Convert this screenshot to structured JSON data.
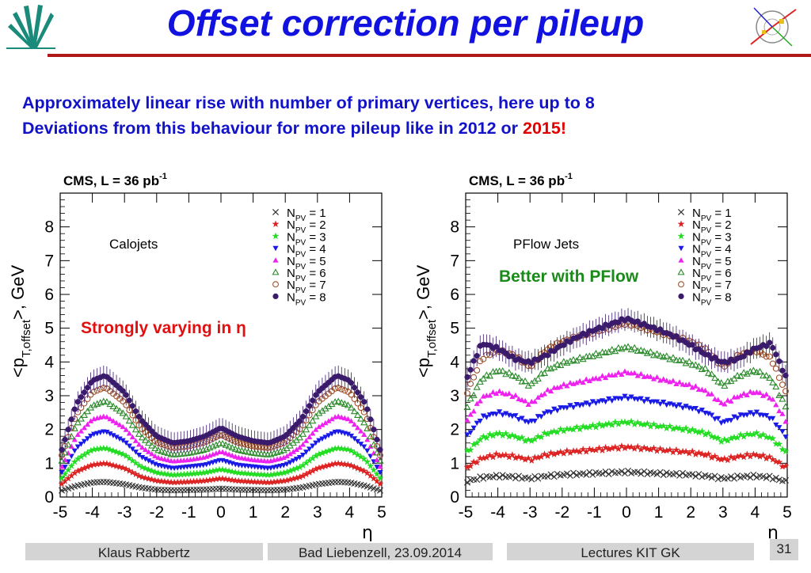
{
  "slide": {
    "title": "Offset correction per pileup",
    "subtitle_lines": [
      "Approximately linear rise with number of primary vertices, here up to 8",
      "Deviations from this behaviour for more pileup like in 2012 or "
    ],
    "subtitle_highlight": "2015",
    "subtitle_end": "!",
    "colors": {
      "title": "#1212e0",
      "subtitle": "#1212c8",
      "highlight": "#e00000",
      "rule": "#b01818"
    }
  },
  "footer": {
    "author": "Klaus Rabbertz",
    "place_date": "Bad Liebenzell, 23.09.2014",
    "course": "Lectures KIT GK",
    "page": "31"
  },
  "chart_data": [
    {
      "type": "scatter",
      "cms_label": "CMS, L = 36 pb",
      "cms_label_sup": "-1",
      "inner_label": "Calojets",
      "annotation": "Strongly varying in η",
      "annotation_color": "#e01010",
      "xlabel": "η",
      "ylabel": "<p",
      "ylabel_sub": "T,offset",
      "ylabel_end": ">, GeV",
      "xlim": [
        -5,
        5
      ],
      "ylim": [
        0,
        9
      ],
      "xticks": [
        "-5",
        "-4",
        "-3",
        "-2",
        "-1",
        "0",
        "1",
        "2",
        "3",
        "4",
        "5"
      ],
      "yticks": [
        "0",
        "1",
        "2",
        "3",
        "4",
        "5",
        "6",
        "7",
        "8"
      ],
      "x": [
        -5.0,
        -4.5,
        -4.0,
        -3.6,
        -3.0,
        -2.5,
        -2.0,
        -1.5,
        -1.0,
        -0.5,
        0.0,
        0.5,
        1.0,
        1.5,
        2.0,
        2.5,
        3.0,
        3.6,
        4.0,
        4.5,
        5.0
      ],
      "series": [
        {
          "name": "N",
          "sub": "PV",
          "eq": " = 1",
          "marker": "x",
          "color": "#333333",
          "values": [
            0.18,
            0.33,
            0.43,
            0.45,
            0.38,
            0.28,
            0.22,
            0.2,
            0.21,
            0.22,
            0.25,
            0.22,
            0.21,
            0.2,
            0.22,
            0.28,
            0.38,
            0.45,
            0.43,
            0.33,
            0.18
          ]
        },
        {
          "name": "N",
          "sub": "PV",
          "eq": " = 2",
          "marker": "star",
          "color": "#dd2222",
          "values": [
            0.35,
            0.75,
            0.95,
            1.0,
            0.85,
            0.6,
            0.48,
            0.43,
            0.45,
            0.48,
            0.55,
            0.48,
            0.45,
            0.43,
            0.48,
            0.6,
            0.85,
            1.0,
            0.95,
            0.75,
            0.35
          ]
        },
        {
          "name": "N",
          "sub": "PV",
          "eq": " = 3",
          "marker": "star",
          "color": "#22dd22",
          "values": [
            0.5,
            1.1,
            1.4,
            1.45,
            1.25,
            0.9,
            0.72,
            0.65,
            0.68,
            0.72,
            0.82,
            0.72,
            0.68,
            0.65,
            0.72,
            0.9,
            1.25,
            1.45,
            1.4,
            1.1,
            0.5
          ]
        },
        {
          "name": "N",
          "sub": "PV",
          "eq": " = 4",
          "marker": "tri-down",
          "color": "#1a1ae6",
          "values": [
            0.65,
            1.45,
            1.85,
            1.95,
            1.65,
            1.2,
            0.95,
            0.85,
            0.9,
            0.95,
            1.1,
            0.95,
            0.9,
            0.85,
            0.95,
            1.2,
            1.65,
            1.95,
            1.85,
            1.45,
            0.65
          ]
        },
        {
          "name": "N",
          "sub": "PV",
          "eq": " = 5",
          "marker": "tri-up",
          "color": "#ee22ee",
          "values": [
            0.8,
            1.8,
            2.3,
            2.4,
            2.05,
            1.5,
            1.18,
            1.06,
            1.1,
            1.18,
            1.35,
            1.18,
            1.1,
            1.06,
            1.18,
            1.5,
            2.05,
            2.4,
            2.3,
            1.8,
            0.8
          ]
        },
        {
          "name": "N",
          "sub": "PV",
          "eq": " = 6",
          "marker": "tri-up-open",
          "color": "#2a8a2a",
          "values": [
            0.95,
            2.15,
            2.7,
            2.85,
            2.45,
            1.8,
            1.4,
            1.25,
            1.3,
            1.4,
            1.6,
            1.4,
            1.3,
            1.25,
            1.4,
            1.8,
            2.45,
            2.85,
            2.7,
            2.15,
            0.95
          ]
        },
        {
          "name": "N",
          "sub": "PV",
          "eq": " = 7",
          "marker": "circle-open",
          "color": "#a0522d",
          "values": [
            1.1,
            2.45,
            3.1,
            3.25,
            2.8,
            2.05,
            1.62,
            1.45,
            1.5,
            1.62,
            1.85,
            1.62,
            1.5,
            1.45,
            1.62,
            2.05,
            2.8,
            3.25,
            3.1,
            2.45,
            1.1
          ]
        },
        {
          "name": "N",
          "sub": "PV",
          "eq": " = 8",
          "marker": "circle",
          "color": "#3a1a6a",
          "values": [
            1.25,
            2.75,
            3.45,
            3.6,
            3.1,
            2.3,
            1.8,
            1.6,
            1.66,
            1.8,
            2.05,
            1.8,
            1.66,
            1.6,
            1.8,
            2.3,
            3.1,
            3.6,
            3.45,
            2.75,
            1.25
          ]
        }
      ]
    },
    {
      "type": "scatter",
      "cms_label": "CMS, L = 36 pb",
      "cms_label_sup": "-1",
      "inner_label": "PFlow Jets",
      "annotation": "Better with PFlow",
      "annotation_color": "#1a8a1a",
      "xlabel": "η",
      "ylabel": "<p",
      "ylabel_sub": "T,offset",
      "ylabel_end": ">, GeV",
      "xlim": [
        -5,
        5
      ],
      "ylim": [
        0,
        9
      ],
      "xticks": [
        "-5",
        "-4",
        "-3",
        "-2",
        "-1",
        "0",
        "1",
        "2",
        "3",
        "4",
        "5"
      ],
      "yticks": [
        "0",
        "1",
        "2",
        "3",
        "4",
        "5",
        "6",
        "7",
        "8"
      ],
      "x": [
        -5.0,
        -4.5,
        -4.0,
        -3.5,
        -3.0,
        -2.5,
        -2.0,
        -1.5,
        -1.0,
        -0.5,
        0.0,
        0.5,
        1.0,
        1.5,
        2.0,
        2.5,
        3.0,
        3.5,
        4.0,
        4.5,
        5.0
      ],
      "series": [
        {
          "name": "N",
          "sub": "PV",
          "eq": " = 1",
          "marker": "x",
          "color": "#333333",
          "values": [
            0.45,
            0.58,
            0.62,
            0.6,
            0.55,
            0.62,
            0.66,
            0.68,
            0.7,
            0.72,
            0.74,
            0.72,
            0.7,
            0.68,
            0.66,
            0.62,
            0.55,
            0.6,
            0.62,
            0.58,
            0.45
          ]
        },
        {
          "name": "N",
          "sub": "PV",
          "eq": " = 2",
          "marker": "star",
          "color": "#dd2222",
          "values": [
            0.85,
            1.15,
            1.25,
            1.2,
            1.1,
            1.25,
            1.32,
            1.36,
            1.4,
            1.44,
            1.48,
            1.44,
            1.4,
            1.36,
            1.32,
            1.25,
            1.1,
            1.2,
            1.25,
            1.15,
            0.85
          ]
        },
        {
          "name": "N",
          "sub": "PV",
          "eq": " = 3",
          "marker": "star",
          "color": "#22dd22",
          "values": [
            1.3,
            1.75,
            1.88,
            1.8,
            1.65,
            1.88,
            1.98,
            2.04,
            2.1,
            2.16,
            2.22,
            2.16,
            2.1,
            2.04,
            1.98,
            1.88,
            1.65,
            1.8,
            1.88,
            1.75,
            1.3
          ]
        },
        {
          "name": "N",
          "sub": "PV",
          "eq": " = 4",
          "marker": "tri-down",
          "color": "#1a1ae6",
          "values": [
            1.75,
            2.35,
            2.5,
            2.4,
            2.2,
            2.5,
            2.64,
            2.72,
            2.8,
            2.88,
            2.96,
            2.88,
            2.8,
            2.72,
            2.64,
            2.5,
            2.2,
            2.4,
            2.5,
            2.35,
            1.75
          ]
        },
        {
          "name": "N",
          "sub": "PV",
          "eq": " = 5",
          "marker": "tri-up",
          "color": "#ee22ee",
          "values": [
            2.2,
            2.95,
            3.12,
            3.0,
            2.75,
            3.12,
            3.3,
            3.4,
            3.5,
            3.6,
            3.7,
            3.6,
            3.5,
            3.4,
            3.3,
            3.12,
            2.75,
            3.0,
            3.12,
            2.95,
            2.2
          ]
        },
        {
          "name": "N",
          "sub": "PV",
          "eq": " = 6",
          "marker": "tri-up-open",
          "color": "#2a8a2a",
          "values": [
            2.6,
            3.5,
            3.75,
            3.6,
            3.3,
            3.75,
            3.96,
            4.08,
            4.2,
            4.32,
            4.44,
            4.32,
            4.2,
            4.08,
            3.96,
            3.75,
            3.3,
            3.6,
            3.75,
            3.5,
            2.6
          ]
        },
        {
          "name": "N",
          "sub": "PV",
          "eq": " = 7",
          "marker": "circle-open",
          "color": "#a0522d",
          "values": [
            3.0,
            4.1,
            4.35,
            4.2,
            3.85,
            4.35,
            4.6,
            4.75,
            4.88,
            5.02,
            5.15,
            5.02,
            4.88,
            4.75,
            4.6,
            4.35,
            3.85,
            4.2,
            4.35,
            4.1,
            3.0
          ]
        },
        {
          "name": "N",
          "sub": "PV",
          "eq": " = 8",
          "marker": "circle",
          "color": "#3a1a6a",
          "values": [
            3.45,
            4.55,
            4.4,
            4.1,
            3.98,
            4.2,
            4.5,
            4.75,
            4.95,
            5.12,
            5.28,
            5.12,
            4.95,
            4.75,
            4.5,
            4.2,
            3.98,
            4.1,
            4.4,
            4.55,
            3.45
          ]
        }
      ]
    }
  ]
}
